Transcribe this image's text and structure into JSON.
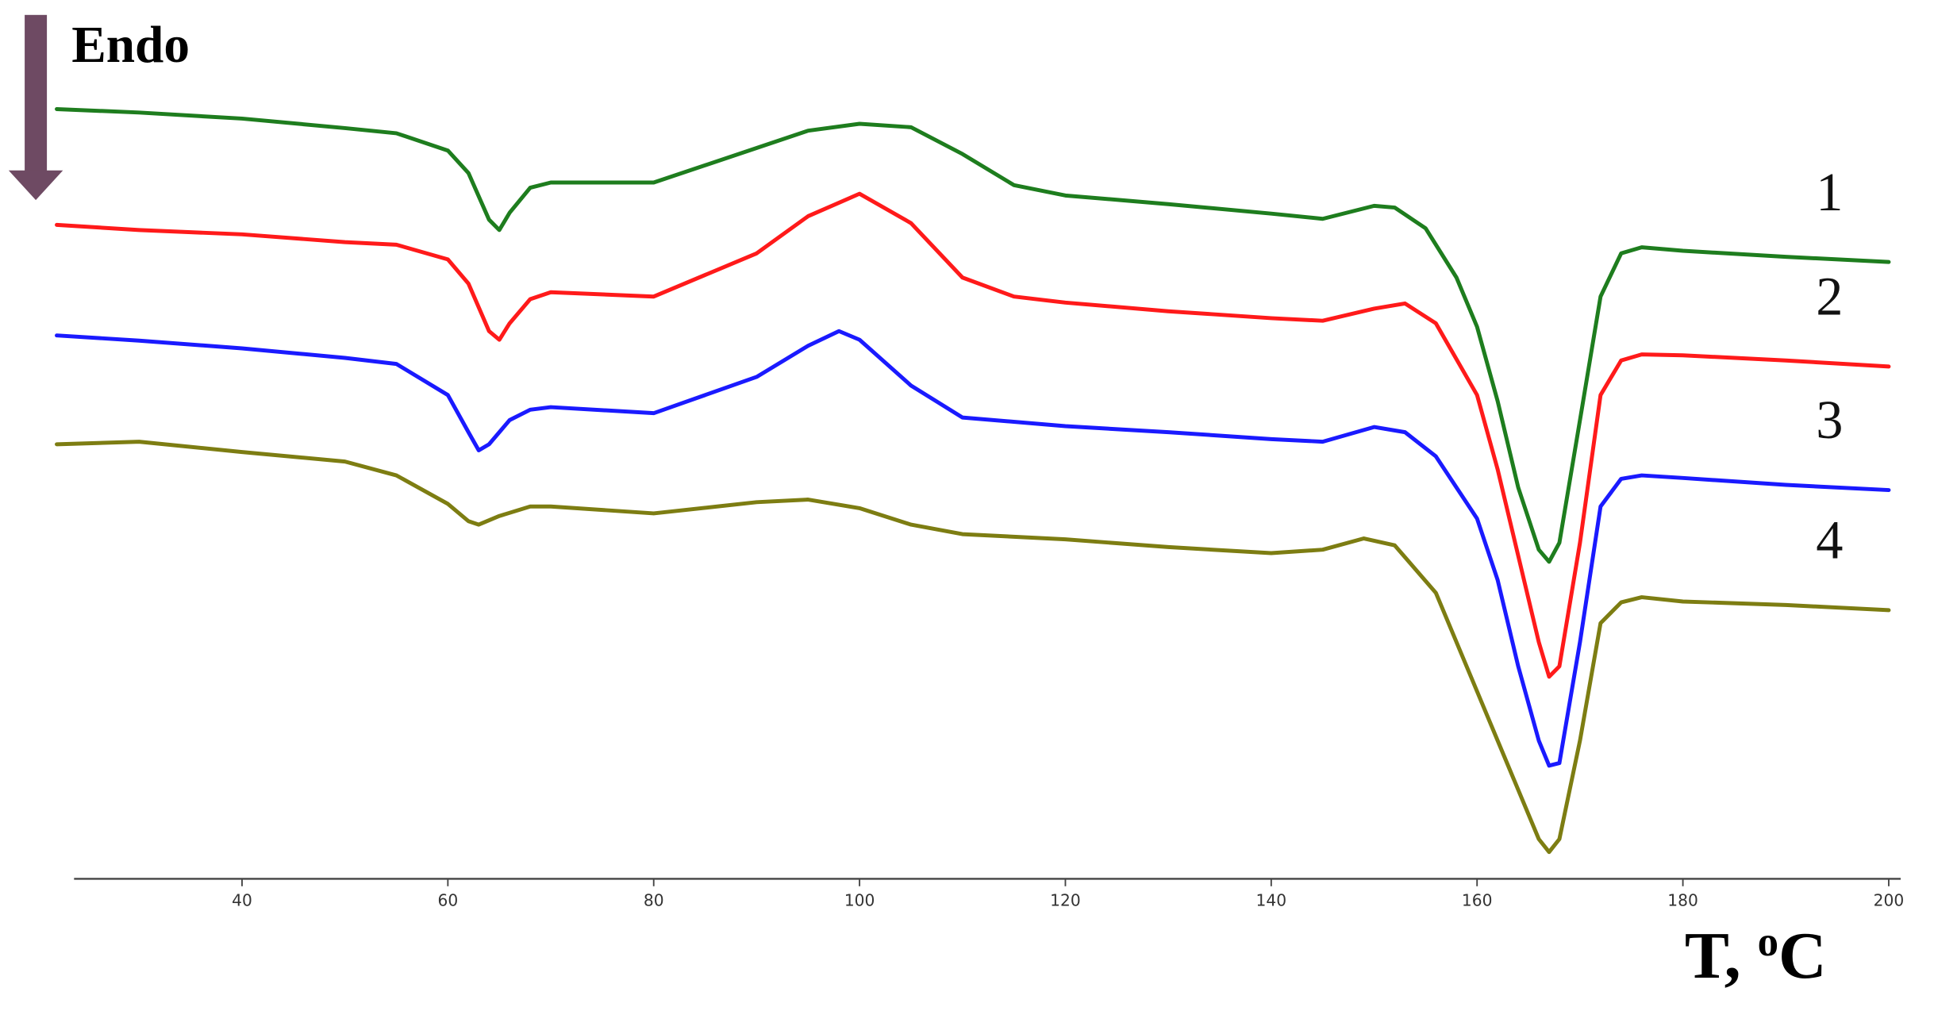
{
  "chart_data": {
    "type": "line",
    "annotation": "Endo",
    "x_label": [
      "T, ",
      "o",
      "C"
    ],
    "xlim": [
      22,
      202
    ],
    "xticks": [
      40,
      60,
      80,
      100,
      120,
      140,
      160,
      180,
      200
    ],
    "ylim": [
      0,
      100
    ],
    "series": [
      {
        "name": "1",
        "color": "#1e7d1e",
        "x": [
          22,
          30,
          40,
          50,
          55,
          60,
          62,
          64,
          65,
          66,
          68,
          70,
          80,
          90,
          95,
          100,
          105,
          110,
          115,
          120,
          130,
          140,
          145,
          150,
          152,
          155,
          158,
          160,
          162,
          164,
          166,
          167,
          168,
          170,
          172,
          174,
          176,
          180,
          190,
          200
        ],
        "values": [
          89.1,
          88.7,
          88.0,
          86.9,
          86.3,
          84.3,
          81.7,
          76.3,
          75.1,
          77.1,
          80.0,
          80.6,
          80.6,
          84.6,
          86.6,
          87.4,
          87.0,
          83.9,
          80.3,
          79.1,
          78.1,
          77.0,
          76.4,
          77.9,
          77.7,
          75.3,
          69.6,
          63.9,
          55.3,
          45.3,
          38.1,
          36.7,
          38.9,
          53.1,
          67.4,
          72.4,
          73.1,
          72.7,
          72.0,
          71.4
        ]
      },
      {
        "name": "2",
        "color": "#ff1a1a",
        "x": [
          22,
          30,
          40,
          50,
          55,
          60,
          62,
          64,
          65,
          66,
          68,
          70,
          80,
          90,
          95,
          100,
          105,
          110,
          115,
          120,
          130,
          140,
          145,
          150,
          153,
          156,
          160,
          162,
          164,
          166,
          167,
          168,
          170,
          172,
          174,
          176,
          180,
          190,
          200
        ],
        "values": [
          75.7,
          75.1,
          74.6,
          73.7,
          73.4,
          71.7,
          68.9,
          63.4,
          62.4,
          64.3,
          67.1,
          67.9,
          67.4,
          72.4,
          76.7,
          79.3,
          75.9,
          69.6,
          67.4,
          66.7,
          65.7,
          64.9,
          64.6,
          66.0,
          66.6,
          64.3,
          56.0,
          47.4,
          37.4,
          27.4,
          23.4,
          24.6,
          38.9,
          56.0,
          60.0,
          60.7,
          60.6,
          60.0,
          59.3
        ]
      },
      {
        "name": "3",
        "color": "#1a1aff",
        "x": [
          22,
          30,
          40,
          50,
          55,
          60,
          62,
          63,
          64,
          66,
          68,
          70,
          80,
          90,
          95,
          98,
          100,
          105,
          110,
          120,
          130,
          140,
          145,
          150,
          153,
          156,
          160,
          162,
          164,
          166,
          167,
          168,
          170,
          172,
          174,
          176,
          180,
          190,
          200
        ],
        "values": [
          62.9,
          62.3,
          61.4,
          60.3,
          59.6,
          56.0,
          51.7,
          49.6,
          50.3,
          53.1,
          54.3,
          54.6,
          53.9,
          58.1,
          61.7,
          63.4,
          62.4,
          57.1,
          53.4,
          52.4,
          51.7,
          50.9,
          50.6,
          52.3,
          51.7,
          48.9,
          41.7,
          34.6,
          24.6,
          16.0,
          13.1,
          13.4,
          27.4,
          43.1,
          46.3,
          46.7,
          46.4,
          45.6,
          45.0
        ]
      },
      {
        "name": "4",
        "color": "#7d7d12",
        "x": [
          22,
          30,
          40,
          50,
          55,
          60,
          62,
          63,
          65,
          68,
          70,
          80,
          90,
          95,
          100,
          105,
          110,
          120,
          130,
          140,
          145,
          149,
          152,
          156,
          160,
          162,
          164,
          166,
          167,
          168,
          170,
          172,
          174,
          176,
          180,
          190,
          200
        ],
        "values": [
          50.3,
          50.6,
          49.4,
          48.3,
          46.7,
          43.4,
          41.4,
          41.0,
          42.0,
          43.1,
          43.1,
          42.3,
          43.6,
          43.9,
          42.9,
          41.0,
          39.9,
          39.3,
          38.4,
          37.7,
          38.1,
          39.4,
          38.6,
          33.1,
          21.7,
          16.0,
          10.3,
          4.6,
          3.1,
          4.6,
          16.0,
          29.6,
          32.0,
          32.6,
          32.1,
          31.7,
          31.1
        ]
      }
    ]
  }
}
